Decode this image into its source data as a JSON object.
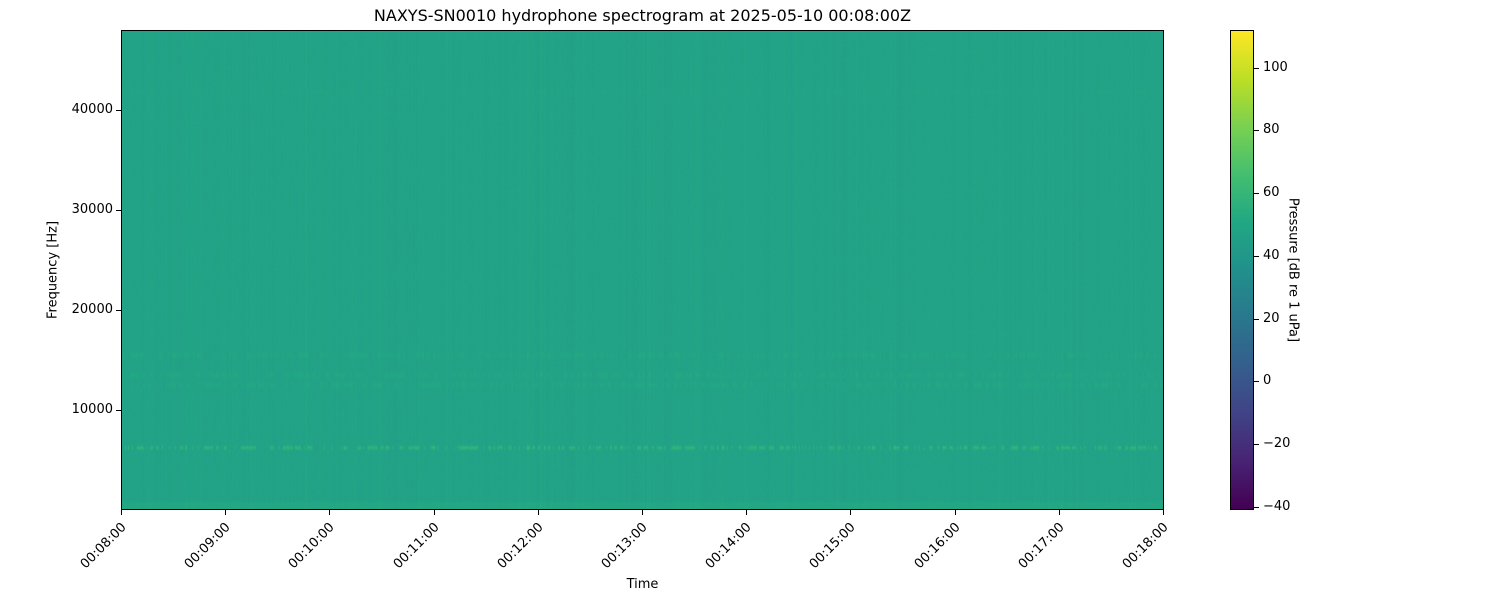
{
  "chart_data": {
    "type": "heatmap",
    "title": "NAXYS-SN0010 hydrophone spectrogram at 2025-05-10 00:08:00Z",
    "xlabel": "Time",
    "ylabel": "Frequency [Hz]",
    "xlim": [
      "00:08:00",
      "00:18:00"
    ],
    "xticks": [
      "00:08:00",
      "00:09:00",
      "00:10:00",
      "00:11:00",
      "00:12:00",
      "00:13:00",
      "00:14:00",
      "00:15:00",
      "00:16:00",
      "00:17:00",
      "00:18:00"
    ],
    "ylim": [
      0,
      48000
    ],
    "yticks": [
      10000,
      20000,
      30000,
      40000
    ],
    "colormap": "viridis",
    "colorbar": {
      "label": "Pressure [dB re 1 uPa]",
      "clim": [
        -41,
        112
      ],
      "ticks": [
        -40,
        -20,
        0,
        20,
        40,
        60,
        80,
        100
      ]
    },
    "background_level_db": 47,
    "features": [
      {
        "freq_hz": 6200,
        "level_db": 62,
        "note": "intermittent tonal band"
      },
      {
        "freq_hz": 12500,
        "level_db": 55
      },
      {
        "freq_hz": 13500,
        "level_db": 55
      },
      {
        "freq_hz": 15500,
        "level_db": 55
      },
      {
        "freq_hz": 42000,
        "level_db": 50
      }
    ],
    "grid": false
  }
}
